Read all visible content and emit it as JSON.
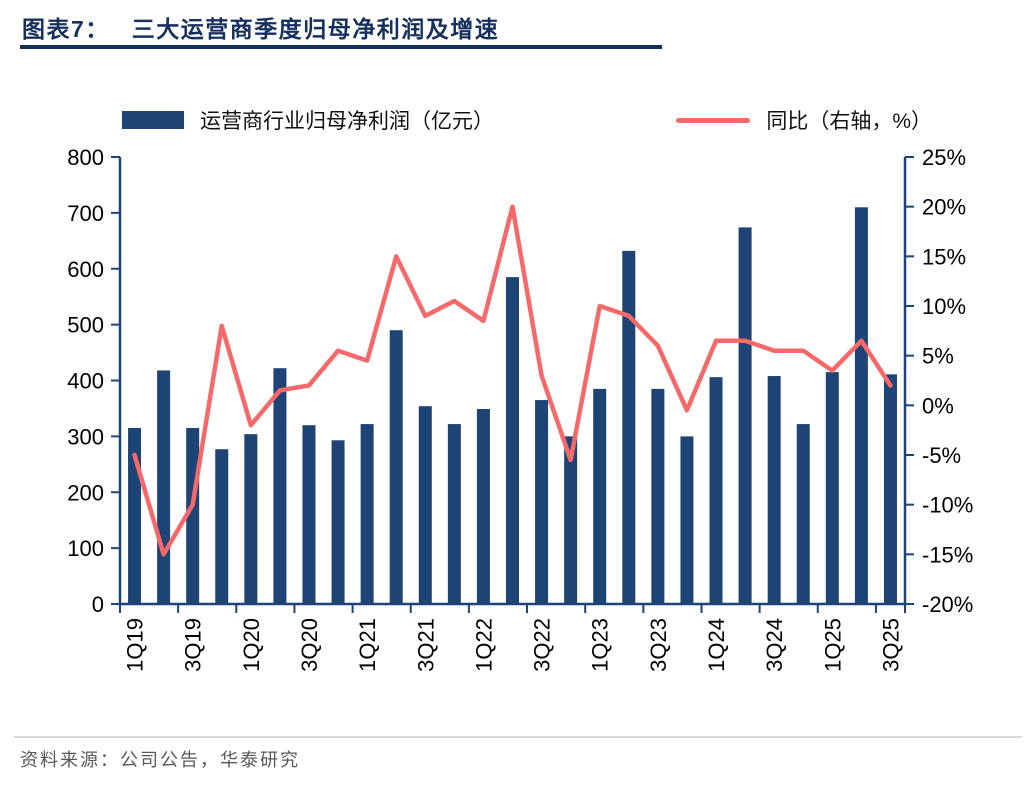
{
  "header": {
    "title_prefix": "图表7：",
    "title_text": "三大运营商季度归母净利润及增速"
  },
  "footer": {
    "source": "资料来源：公司公告，华泰研究"
  },
  "colors": {
    "bar": "#1e4375",
    "line": "#f5696b",
    "axis": "#1e4375",
    "title": "#16305e",
    "title_rule": "#16305e",
    "tick_text": "#000000",
    "divider": "#d6d6d6",
    "source_text": "#595959"
  },
  "chart_data": {
    "type": "combo-bar-line",
    "title": "三大运营商季度归母净利润及增速",
    "grid": false,
    "legend_position": "top",
    "categories": [
      "1Q19",
      "2Q19",
      "3Q19",
      "4Q19",
      "1Q20",
      "2Q20",
      "3Q20",
      "4Q20",
      "1Q21",
      "2Q21",
      "3Q21",
      "4Q21",
      "1Q22",
      "2Q22",
      "3Q22",
      "4Q22",
      "1Q23",
      "2Q23",
      "3Q23",
      "4Q23",
      "1Q24",
      "2Q24",
      "3Q24",
      "4Q24",
      "1Q25",
      "2Q25",
      "3Q25"
    ],
    "x_tick_labels": [
      "1Q19",
      "3Q19",
      "1Q20",
      "3Q20",
      "1Q21",
      "3Q21",
      "1Q22",
      "3Q22",
      "1Q23",
      "3Q23",
      "1Q24",
      "3Q24",
      "1Q25",
      "3Q25"
    ],
    "series": [
      {
        "name": "运营商行业归母净利润（亿元）",
        "type": "bar",
        "axis": "left",
        "color": "#1e4375",
        "values": [
          315,
          418,
          315,
          277,
          304,
          422,
          320,
          293,
          322,
          490,
          354,
          322,
          349,
          585,
          365,
          300,
          385,
          632,
          385,
          300,
          406,
          674,
          408,
          322,
          415,
          710,
          411
        ]
      },
      {
        "name": "同比（右轴，%）",
        "type": "line",
        "axis": "right",
        "color": "#f5696b",
        "values": [
          -5,
          -15,
          -10,
          8,
          -2,
          1.5,
          2,
          5.5,
          4.5,
          15,
          9,
          10.5,
          8.5,
          20,
          3,
          -5.5,
          10,
          9,
          6,
          -0.5,
          6.5,
          6.5,
          5.5,
          5.5,
          3.5,
          6.5,
          2
        ]
      }
    ],
    "left_axis": {
      "min": 0,
      "max": 800,
      "tick_values": [
        0,
        100,
        200,
        300,
        400,
        500,
        600,
        700,
        800
      ],
      "tick_labels": [
        "0",
        "100",
        "200",
        "300",
        "400",
        "500",
        "600",
        "700",
        "800"
      ]
    },
    "right_axis": {
      "min": -20,
      "max": 25,
      "tick_values": [
        -20,
        -15,
        -10,
        -5,
        0,
        5,
        10,
        15,
        20,
        25
      ],
      "tick_labels": [
        "-20%",
        "-15%",
        "-10%",
        "-5%",
        "0%",
        "5%",
        "10%",
        "15%",
        "20%",
        "25%"
      ]
    }
  }
}
